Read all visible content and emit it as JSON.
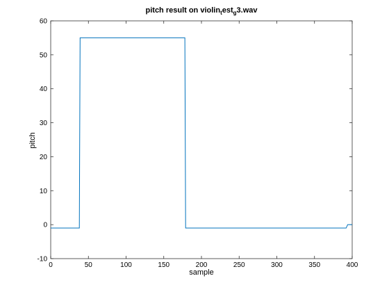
{
  "chart_data": {
    "type": "line",
    "title": {
      "parts": [
        {
          "text": "pitch result on violin",
          "sub": false
        },
        {
          "text": "t",
          "sub": true
        },
        {
          "text": "est",
          "sub": false
        },
        {
          "text": "g",
          "sub": true
        },
        {
          "text": "3.wav",
          "sub": false
        }
      ]
    },
    "xlabel": "sample",
    "ylabel": "pitch",
    "xlim": [
      0,
      400
    ],
    "ylim": [
      -10,
      60
    ],
    "xticks": [
      0,
      50,
      100,
      150,
      200,
      250,
      300,
      350,
      400
    ],
    "yticks": [
      -10,
      0,
      10,
      20,
      30,
      40,
      50,
      60
    ],
    "grid": false,
    "box": true,
    "series": [
      {
        "color": "#0072bd",
        "x": [
          0,
          38,
          39,
          178,
          179,
          392,
          394,
          400
        ],
        "y": [
          -1,
          -1,
          55,
          55,
          -1,
          -1,
          0,
          0
        ]
      }
    ]
  }
}
